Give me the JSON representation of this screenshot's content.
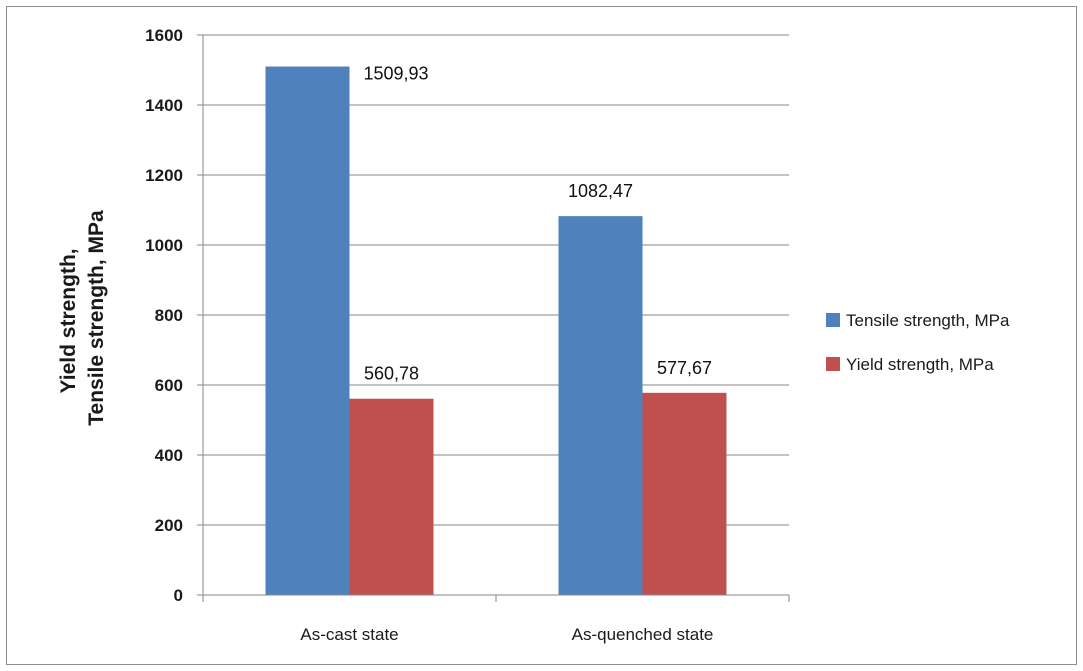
{
  "chart_data": {
    "type": "bar",
    "categories": [
      "As-cast state",
      "As-quenched state"
    ],
    "series": [
      {
        "name": "Tensile strength, MPa",
        "values": [
          1509.93,
          1082.47
        ],
        "labels": [
          "1509,93",
          "1082,47"
        ],
        "color": "#4f81bd"
      },
      {
        "name": "Yield strength, MPa",
        "values": [
          560.78,
          577.67
        ],
        "labels": [
          "560,78",
          "577,67"
        ],
        "color": "#c0504d"
      }
    ],
    "ylabel_lines": [
      "Yield strength,",
      "Tensile strength, MPa"
    ],
    "ylim": [
      0,
      1600
    ],
    "yticks": [
      0,
      200,
      400,
      600,
      800,
      1000,
      1200,
      1400,
      1600
    ],
    "grid": true,
    "legend_position": "right"
  }
}
